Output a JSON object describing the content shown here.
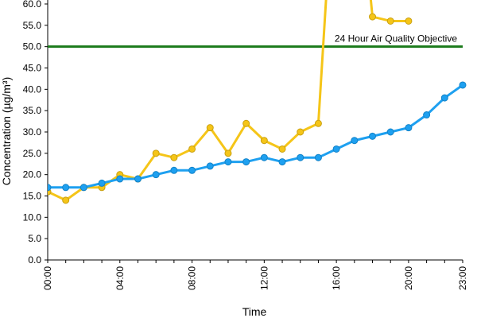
{
  "chart_data": {
    "type": "line",
    "title": "",
    "xlabel": "Time",
    "ylabel": "Concentration (µg/m³)",
    "x_range": [
      0,
      23
    ],
    "ylim": [
      0,
      60
    ],
    "y_ticks": [
      "0.0",
      "5.0",
      "10.0",
      "15.0",
      "20.0",
      "25.0",
      "30.0",
      "35.0",
      "40.0",
      "45.0",
      "50.0",
      "55.0",
      "60.0"
    ],
    "x_ticks": [
      "00:00",
      "04:00",
      "08:00",
      "12:00",
      "16:00",
      "20:00",
      "23:00"
    ],
    "x_tick_hours": [
      0,
      4,
      8,
      12,
      16,
      20,
      23
    ],
    "grid": false,
    "legend": "none",
    "series": [
      {
        "color": "#f5c518",
        "x": [
          0,
          1,
          2,
          3,
          4,
          5,
          6,
          7,
          8,
          9,
          10,
          11,
          12,
          13,
          14,
          15,
          16,
          17,
          18,
          19,
          20
        ],
        "values": [
          16,
          14,
          17,
          17,
          20,
          19,
          25,
          24,
          26,
          31,
          25,
          32,
          28,
          26,
          30,
          32,
          100,
          100,
          57,
          56,
          56
        ]
      },
      {
        "color": "#1ea0f0",
        "x": [
          0,
          1,
          2,
          3,
          4,
          5,
          6,
          7,
          8,
          9,
          10,
          11,
          12,
          13,
          14,
          15,
          16,
          17,
          18,
          19,
          20,
          21,
          22,
          23
        ],
        "values": [
          17,
          17,
          17,
          18,
          19,
          19,
          20,
          21,
          21,
          22,
          23,
          23,
          24,
          23,
          24,
          24,
          26,
          28,
          29,
          30,
          31,
          34,
          38,
          41
        ]
      }
    ],
    "reference_line": {
      "value": 50,
      "label": "24 Hour Air Quality Objective",
      "color": "#1a7a1a"
    }
  }
}
